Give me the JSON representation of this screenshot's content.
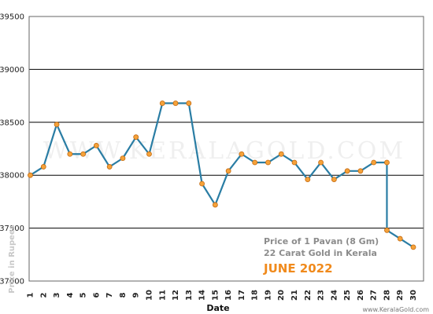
{
  "chart_data": {
    "type": "line",
    "xlabel": "Date",
    "ylabel": "Price in Rupees",
    "ylim": [
      37000,
      39500
    ],
    "yticks": [
      37000,
      37500,
      38000,
      38500,
      39000,
      39500
    ],
    "categories": [
      "1",
      "2",
      "3",
      "4",
      "5",
      "6",
      "7",
      "8",
      "9",
      "10",
      "11",
      "12",
      "13",
      "14",
      "15",
      "16",
      "17",
      "18",
      "19",
      "20",
      "21",
      "22",
      "23",
      "24",
      "25",
      "26",
      "27",
      "28",
      "29",
      "30"
    ],
    "points": [
      {
        "x": 1,
        "y": 38000
      },
      {
        "x": 2,
        "y": 38080
      },
      {
        "x": 3,
        "y": 38480
      },
      {
        "x": 4,
        "y": 38200
      },
      {
        "x": 5,
        "y": 38200
      },
      {
        "x": 6,
        "y": 38280
      },
      {
        "x": 7,
        "y": 38080
      },
      {
        "x": 8,
        "y": 38160
      },
      {
        "x": 9,
        "y": 38360
      },
      {
        "x": 10,
        "y": 38200
      },
      {
        "x": 11,
        "y": 38680
      },
      {
        "x": 12,
        "y": 38680
      },
      {
        "x": 13,
        "y": 38680
      },
      {
        "x": 14,
        "y": 37920
      },
      {
        "x": 15,
        "y": 37720
      },
      {
        "x": 16,
        "y": 38040
      },
      {
        "x": 17,
        "y": 38200
      },
      {
        "x": 18,
        "y": 38120
      },
      {
        "x": 19,
        "y": 38120
      },
      {
        "x": 20,
        "y": 38200
      },
      {
        "x": 21,
        "y": 38120
      },
      {
        "x": 22,
        "y": 37960
      },
      {
        "x": 23,
        "y": 38120
      },
      {
        "x": 24,
        "y": 37960
      },
      {
        "x": 25,
        "y": 38040
      },
      {
        "x": 26,
        "y": 38040
      },
      {
        "x": 27,
        "y": 38120
      },
      {
        "x": 28,
        "y": 38120
      },
      {
        "x": 28,
        "y": 37480
      },
      {
        "x": 29,
        "y": 37400
      },
      {
        "x": 30,
        "y": 37320
      }
    ],
    "grid": true,
    "line_color": "#2a7da4",
    "marker_color": "#f5a23a",
    "legend": {
      "line1": "Price of 1 Pavan (8 Gm)",
      "line2": "22 Carat Gold in Kerala",
      "line3": "JUNE 2022",
      "placement": "bottom-right"
    },
    "watermark": "WWW.KERALAGOLD.COM",
    "credit": "www.KeralaGold.com"
  }
}
